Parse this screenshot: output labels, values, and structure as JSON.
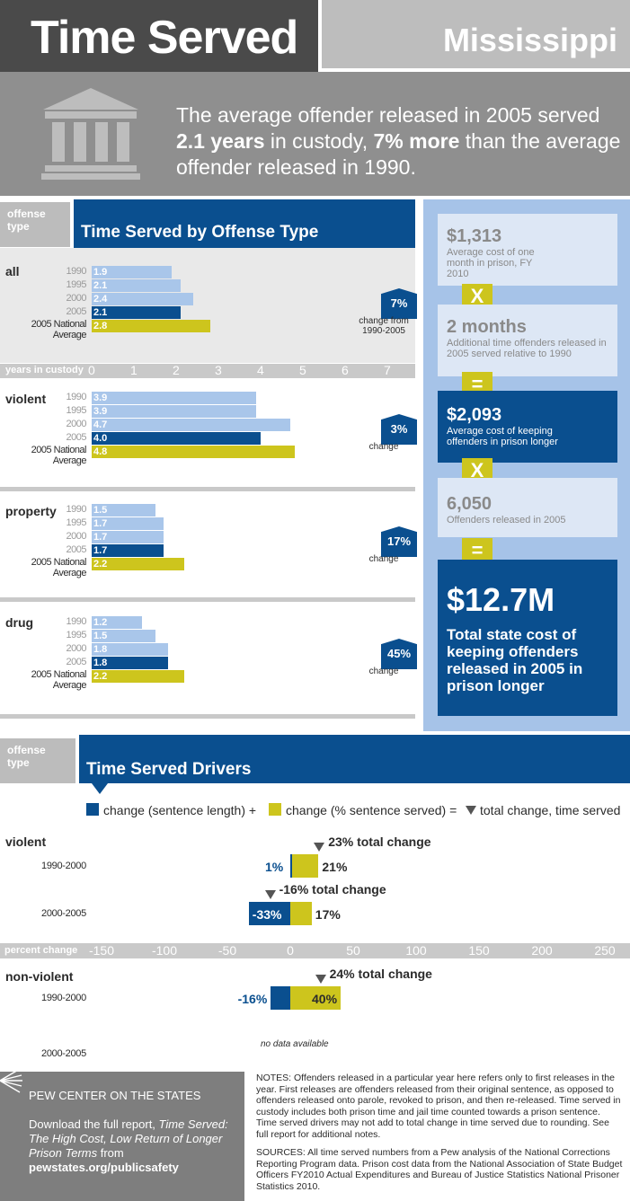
{
  "header": {
    "title": "Time Served",
    "state": "Mississippi"
  },
  "summary": {
    "pre": "The average offender released in 2005 served ",
    "years": "2.1 years",
    "mid": " in custody, ",
    "pct": "7% more",
    "post": " than the average offender released in 1990."
  },
  "colors": {
    "accent_blue": "#0a4f8f",
    "light_blue": "#a9c6ea",
    "yellow": "#cdc51d",
    "gray": "#8f8f8f"
  },
  "icons": {
    "courthouse": "courthouse-icon",
    "logo": "sunburst-logo"
  },
  "offense_section": {
    "type_label": "offense type",
    "title": "Time Served by Offense Type",
    "axis_label": "years in custody",
    "axis_ticks": [
      "0",
      "1",
      "2",
      "3",
      "4",
      "5",
      "6",
      "7"
    ]
  },
  "cost_panel": {
    "monthly_cost": "$1,313",
    "monthly_desc": "Average cost of one month in prison, FY 2010",
    "times1": "X",
    "months": "2 months",
    "months_desc": "Additional time offenders released in 2005 served relative to 1990",
    "eq1": "=",
    "per_offender": "$2,093",
    "per_offender_desc": "Average cost of keeping offenders in prison longer",
    "times2": "X",
    "released": "6,050",
    "released_desc": "Offenders released in 2005",
    "eq2": "=",
    "total": "$12.7M",
    "total_desc": "Total state cost of keeping offenders released in 2005 in prison longer"
  },
  "drivers_section": {
    "type_label": "offense type",
    "title": "Time Served Drivers",
    "legend_a": "change (sentence length) +",
    "legend_b": "change (% sentence served) =",
    "legend_c": "total change, time served",
    "axis_label": "percent change",
    "axis_ticks": [
      "-150",
      "-100",
      "-50",
      "0",
      "50",
      "100",
      "150",
      "200",
      "250"
    ],
    "no_data": "no data available"
  },
  "chart_data": [
    {
      "type": "bar",
      "title": "Time Served by Offense Type",
      "xlabel": "years in custody",
      "xlim": [
        0,
        7
      ],
      "categories": [
        "1990",
        "1995",
        "2000",
        "2005",
        "2005 National Average"
      ],
      "groups": [
        {
          "name": "all",
          "values": [
            1.9,
            2.1,
            2.4,
            2.1,
            2.8
          ],
          "labels": [
            "1.9",
            "2.1",
            "2.4",
            "2.1",
            "2.8"
          ],
          "change": "7%",
          "change_caption": "change from 1990-2005"
        },
        {
          "name": "violent",
          "values": [
            3.9,
            3.9,
            4.7,
            4.0,
            4.8
          ],
          "labels": [
            "3.9",
            "3.9",
            "4.7",
            "4.0",
            "4.8"
          ],
          "change": "3%",
          "change_caption": "change"
        },
        {
          "name": "property",
          "values": [
            1.5,
            1.7,
            1.7,
            1.7,
            2.2
          ],
          "labels": [
            "1.5",
            "1.7",
            "1.7",
            "1.7",
            "2.2"
          ],
          "change": "17%",
          "change_caption": "change"
        },
        {
          "name": "drug",
          "values": [
            1.2,
            1.5,
            1.8,
            1.8,
            2.2
          ],
          "labels": [
            "1.2",
            "1.5",
            "1.8",
            "1.8",
            "2.2"
          ],
          "change": "45%",
          "change_caption": "change"
        }
      ],
      "year_labels": [
        "1990",
        "1995",
        "2000",
        "2005"
      ],
      "national_label": [
        "2005 National",
        "Average"
      ]
    },
    {
      "type": "bar",
      "title": "Time Served Drivers",
      "xlabel": "percent change",
      "xlim": [
        -150,
        250
      ],
      "groups": [
        {
          "name": "violent",
          "rows": [
            {
              "period": "1990-2000",
              "sentence_length": 1,
              "pct_served": 21,
              "total": 23,
              "sl_label": "1%",
              "ps_label": "21%",
              "total_label": "23% total change"
            },
            {
              "period": "2000-2005",
              "sentence_length": -33,
              "pct_served": 17,
              "total": -16,
              "sl_label": "-33%",
              "ps_label": "17%",
              "total_label": "-16% total change"
            }
          ]
        },
        {
          "name": "non-violent",
          "rows": [
            {
              "period": "1990-2000",
              "sentence_length": -16,
              "pct_served": 40,
              "total": 24,
              "sl_label": "-16%",
              "ps_label": "40%",
              "total_label": "24% total change"
            },
            {
              "period": "2000-2005",
              "sentence_length": null,
              "pct_served": null,
              "total": null
            }
          ]
        }
      ]
    }
  ],
  "footer": {
    "org": "PEW CENTER ON THE STATES",
    "download_pre": "Download the full report, ",
    "report_title": "Time Served: The High Cost, Low Return of Longer Prison Terms",
    "download_post": " from",
    "url": "pewstates.org/publicsafety",
    "notes": "NOTES: Offenders released in a particular year here refers only to first releases in the year. First releases are offenders released from their original sentence, as opposed to offenders released onto parole, revoked to prison, and then re-released. Time served in custody includes both prison time and jail time counted towards a prison sentence. Time served drivers may not add to total change in time served due to rounding. See full report for additional notes.",
    "sources": "SOURCES: All time served numbers from a Pew analysis of the National Corrections Reporting Program data. Prison cost data from the National Association of State Budget Officers FY2010 Actual Expenditures and Bureau of Justice Statistics National Prisoner Statistics 2010."
  }
}
